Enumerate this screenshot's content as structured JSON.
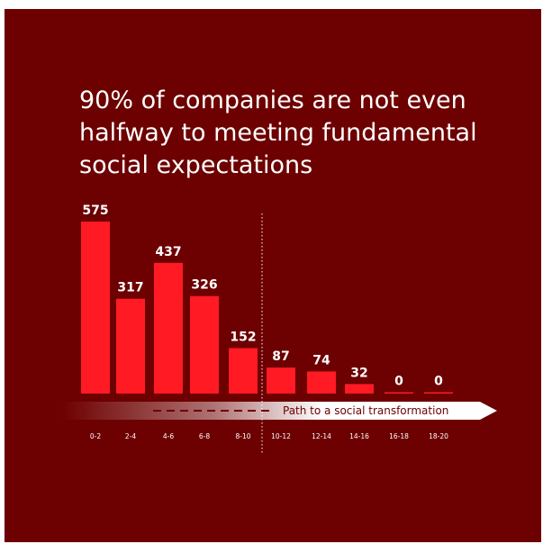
{
  "title_lines": [
    "90% of companies are not even",
    "halfway to meeting fundamental",
    "social expectations"
  ],
  "colors": {
    "background": "#6d0000",
    "bar": "#ff1a24",
    "text": "#ffffff"
  },
  "arrow": {
    "label": "Path to a social transformation"
  },
  "chart_data": {
    "type": "bar",
    "categories": [
      "0-2",
      "2-4",
      "4-6",
      "6-8",
      "8-10",
      "10-12",
      "12-14",
      "14-16",
      "16-18",
      "18-20"
    ],
    "values": [
      575,
      317,
      437,
      326,
      152,
      87,
      74,
      32,
      0,
      0
    ],
    "title": "90% of companies are not even halfway to meeting fundamental social expectations",
    "xlabel": "",
    "ylabel": "",
    "ylim": [
      0,
      575
    ],
    "grid": false,
    "divider_after_category": "8-10"
  }
}
